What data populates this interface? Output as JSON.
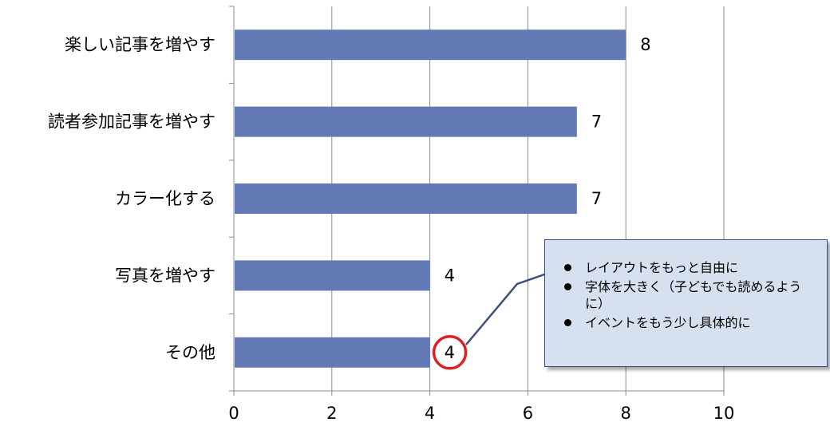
{
  "chart_data": {
    "type": "bar",
    "orientation": "horizontal",
    "categories": [
      "楽しい記事を増やす",
      "読者参加記事を増やす",
      "カラー化する",
      "写真を増やす",
      "その他"
    ],
    "values": [
      8,
      7,
      7,
      4,
      4
    ],
    "data_labels": [
      "8",
      "7",
      "7",
      "4",
      "4"
    ],
    "xlim": [
      0,
      10
    ],
    "x_ticks": [
      0,
      2,
      4,
      6,
      8,
      10
    ],
    "x_tick_labels": [
      "0",
      "2",
      "4",
      "6",
      "8",
      "10"
    ],
    "grid": "vertical",
    "bar_color": "#6279b6",
    "highlight": {
      "category": "その他",
      "color": "#e02020"
    },
    "callout": {
      "items": [
        "レイアウトをもっと自由に",
        "字体を大きく（子どもでも読めるように）",
        "イベントをもう少し具体的に"
      ]
    }
  }
}
